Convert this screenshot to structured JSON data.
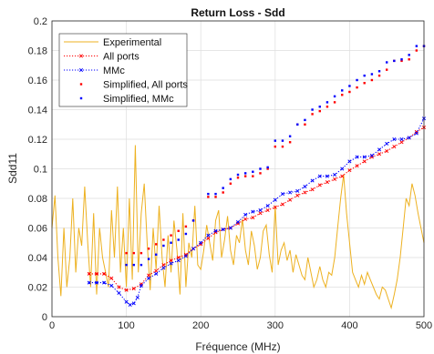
{
  "chart_data": {
    "type": "line",
    "title": "Return Loss - Sdd",
    "xlabel": "Fréquence (MHz)",
    "ylabel": "Sdd11",
    "xlim": [
      0,
      500
    ],
    "ylim": [
      0,
      0.2
    ],
    "xticks": [
      "0",
      "100",
      "200",
      "300",
      "400",
      "500"
    ],
    "yticks": [
      "0",
      "0.02",
      "0.04",
      "0.06",
      "0.08",
      "0.1",
      "0.12",
      "0.14",
      "0.16",
      "0.18",
      "0.2"
    ],
    "grid": true,
    "legend": "top-left",
    "series": [
      {
        "name": "Experimental",
        "color": "#EDB120",
        "style": "solid-line",
        "x": [
          0,
          4,
          8,
          12,
          16,
          20,
          24,
          28,
          32,
          36,
          40,
          44,
          48,
          52,
          56,
          60,
          64,
          68,
          72,
          76,
          80,
          84,
          88,
          92,
          96,
          100,
          104,
          108,
          112,
          116,
          120,
          124,
          128,
          132,
          136,
          140,
          144,
          148,
          152,
          156,
          160,
          164,
          168,
          172,
          176,
          180,
          184,
          188,
          192,
          196,
          200,
          204,
          208,
          212,
          216,
          220,
          224,
          228,
          232,
          236,
          240,
          244,
          248,
          252,
          256,
          260,
          264,
          268,
          272,
          276,
          280,
          284,
          288,
          292,
          296,
          300,
          304,
          308,
          312,
          316,
          320,
          324,
          328,
          332,
          336,
          340,
          344,
          348,
          352,
          356,
          360,
          364,
          368,
          372,
          376,
          380,
          384,
          388,
          392,
          396,
          400,
          404,
          408,
          412,
          416,
          420,
          424,
          428,
          432,
          436,
          440,
          444,
          448,
          452,
          456,
          460,
          464,
          468,
          472,
          476,
          480,
          484,
          488,
          492,
          496,
          500
        ],
        "y": [
          0.06,
          0.082,
          0.04,
          0.014,
          0.06,
          0.02,
          0.04,
          0.08,
          0.03,
          0.06,
          0.048,
          0.088,
          0.05,
          0.02,
          0.07,
          0.015,
          0.06,
          0.04,
          0.03,
          0.02,
          0.072,
          0.04,
          0.088,
          0.03,
          0.06,
          0.02,
          0.08,
          0.025,
          0.116,
          0.03,
          0.07,
          0.09,
          0.05,
          0.018,
          0.06,
          0.032,
          0.075,
          0.04,
          0.02,
          0.055,
          0.03,
          0.065,
          0.045,
          0.015,
          0.07,
          0.02,
          0.05,
          0.04,
          0.075,
          0.035,
          0.032,
          0.045,
          0.062,
          0.05,
          0.038,
          0.065,
          0.072,
          0.04,
          0.052,
          0.068,
          0.045,
          0.035,
          0.055,
          0.05,
          0.066,
          0.045,
          0.035,
          0.058,
          0.048,
          0.032,
          0.04,
          0.058,
          0.062,
          0.042,
          0.03,
          0.075,
          0.035,
          0.045,
          0.05,
          0.038,
          0.045,
          0.03,
          0.042,
          0.035,
          0.028,
          0.025,
          0.04,
          0.03,
          0.02,
          0.025,
          0.034,
          0.025,
          0.02,
          0.03,
          0.028,
          0.04,
          0.06,
          0.08,
          0.096,
          0.07,
          0.05,
          0.03,
          0.025,
          0.02,
          0.028,
          0.022,
          0.03,
          0.025,
          0.02,
          0.015,
          0.012,
          0.02,
          0.018,
          0.012,
          0.006,
          0.015,
          0.025,
          0.04,
          0.06,
          0.08,
          0.075,
          0.09,
          0.082,
          0.07,
          0.06,
          0.05
        ]
      },
      {
        "name": "All ports",
        "color": "#FF0000",
        "style": "dotted-line-with-markers",
        "x": [
          50,
          60,
          70,
          80,
          90,
          100,
          110,
          120,
          130,
          140,
          150,
          160,
          170,
          180,
          190,
          200,
          210,
          220,
          230,
          240,
          250,
          260,
          270,
          280,
          290,
          300,
          310,
          320,
          330,
          340,
          350,
          360,
          370,
          380,
          390,
          400,
          410,
          420,
          430,
          440,
          450,
          460,
          470,
          480,
          490,
          500
        ],
        "y": [
          0.029,
          0.029,
          0.029,
          0.026,
          0.02,
          0.018,
          0.019,
          0.022,
          0.028,
          0.031,
          0.035,
          0.038,
          0.04,
          0.042,
          0.046,
          0.049,
          0.053,
          0.057,
          0.059,
          0.06,
          0.063,
          0.066,
          0.067,
          0.07,
          0.072,
          0.074,
          0.076,
          0.079,
          0.082,
          0.084,
          0.086,
          0.089,
          0.091,
          0.093,
          0.095,
          0.099,
          0.102,
          0.105,
          0.108,
          0.11,
          0.112,
          0.115,
          0.118,
          0.121,
          0.125,
          0.128
        ]
      },
      {
        "name": "MMc",
        "color": "#0000FF",
        "style": "dotted-line-with-markers",
        "x": [
          50,
          60,
          70,
          80,
          90,
          100,
          105,
          110,
          115,
          120,
          130,
          140,
          150,
          160,
          170,
          180,
          190,
          200,
          210,
          220,
          230,
          240,
          250,
          260,
          270,
          280,
          290,
          300,
          310,
          320,
          330,
          340,
          350,
          360,
          370,
          380,
          390,
          400,
          410,
          420,
          430,
          440,
          450,
          460,
          470,
          480,
          490,
          500
        ],
        "y": [
          0.023,
          0.023,
          0.023,
          0.021,
          0.016,
          0.01,
          0.008,
          0.009,
          0.013,
          0.021,
          0.026,
          0.029,
          0.033,
          0.036,
          0.038,
          0.041,
          0.046,
          0.05,
          0.055,
          0.058,
          0.059,
          0.06,
          0.064,
          0.069,
          0.071,
          0.072,
          0.075,
          0.079,
          0.083,
          0.084,
          0.085,
          0.088,
          0.092,
          0.095,
          0.095,
          0.096,
          0.1,
          0.105,
          0.108,
          0.108,
          0.109,
          0.113,
          0.117,
          0.12,
          0.12,
          0.121,
          0.124,
          0.134
        ]
      },
      {
        "name": "Simplified, All ports",
        "color": "#FF0000",
        "style": "markers",
        "x": [
          50,
          60,
          70,
          100,
          110,
          120,
          130,
          140,
          150,
          160,
          170,
          180,
          190,
          210,
          220,
          230,
          240,
          250,
          260,
          270,
          280,
          290,
          300,
          310,
          320,
          330,
          340,
          350,
          360,
          370,
          380,
          390,
          400,
          410,
          420,
          430,
          440,
          450,
          460,
          470,
          480,
          490,
          500
        ],
        "y": [
          0.029,
          0.029,
          0.029,
          0.043,
          0.043,
          0.043,
          0.046,
          0.049,
          0.052,
          0.055,
          0.058,
          0.061,
          0.065,
          0.081,
          0.081,
          0.084,
          0.09,
          0.094,
          0.095,
          0.095,
          0.097,
          0.1,
          0.115,
          0.115,
          0.118,
          0.13,
          0.13,
          0.137,
          0.139,
          0.142,
          0.145,
          0.15,
          0.152,
          0.155,
          0.158,
          0.16,
          0.163,
          0.167,
          0.173,
          0.173,
          0.174,
          0.18,
          0.183
        ]
      },
      {
        "name": "Simplified, MMc",
        "color": "#0000FF",
        "style": "markers",
        "x": [
          50,
          60,
          70,
          100,
          110,
          120,
          130,
          140,
          150,
          160,
          170,
          180,
          190,
          210,
          220,
          230,
          240,
          250,
          260,
          270,
          280,
          290,
          300,
          310,
          320,
          330,
          340,
          350,
          360,
          370,
          380,
          390,
          400,
          410,
          420,
          430,
          440,
          450,
          460,
          470,
          480,
          490,
          500
        ],
        "y": [
          0.023,
          0.023,
          0.023,
          0.035,
          0.035,
          0.035,
          0.039,
          0.042,
          0.048,
          0.05,
          0.052,
          0.056,
          0.065,
          0.083,
          0.083,
          0.087,
          0.093,
          0.096,
          0.097,
          0.098,
          0.1,
          0.101,
          0.119,
          0.119,
          0.122,
          0.13,
          0.133,
          0.14,
          0.142,
          0.145,
          0.149,
          0.153,
          0.156,
          0.16,
          0.163,
          0.164,
          0.166,
          0.172,
          0.173,
          0.174,
          0.177,
          0.183,
          0.183
        ]
      }
    ]
  }
}
